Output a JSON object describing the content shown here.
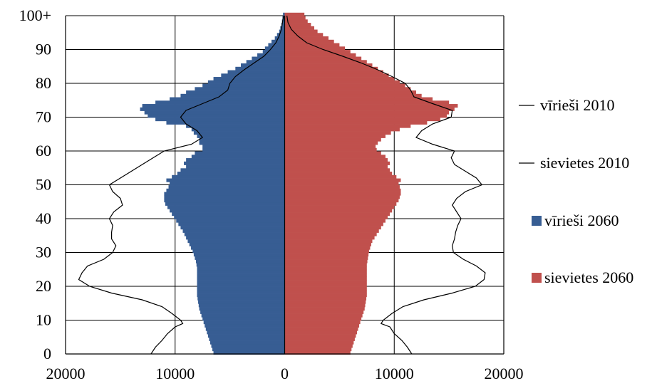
{
  "chart_data": {
    "type": "bar",
    "title": "",
    "xlabel": "",
    "ylabel": "",
    "xlim": [
      -20000,
      20000
    ],
    "ylim": [
      0,
      100
    ],
    "grid": true,
    "legend_position": "right",
    "x_ticks": [
      {
        "value": -20000,
        "label": "20000"
      },
      {
        "value": -10000,
        "label": "10000"
      },
      {
        "value": 0,
        "label": "0"
      },
      {
        "value": 10000,
        "label": "10000"
      },
      {
        "value": 20000,
        "label": "20000"
      }
    ],
    "y_ticks": [
      {
        "value": 0,
        "label": "0"
      },
      {
        "value": 10,
        "label": "10"
      },
      {
        "value": 20,
        "label": "20"
      },
      {
        "value": 30,
        "label": "30"
      },
      {
        "value": 40,
        "label": "40"
      },
      {
        "value": 50,
        "label": "50"
      },
      {
        "value": 60,
        "label": "60"
      },
      {
        "value": 70,
        "label": "70"
      },
      {
        "value": 80,
        "label": "80"
      },
      {
        "value": 90,
        "label": "90"
      },
      {
        "value": 100,
        "label": "100+"
      }
    ],
    "series": [
      {
        "name": "vīrieši 2010",
        "kind": "line",
        "side": "left",
        "color": "#000000",
        "points": [
          [
            0,
            12200
          ],
          [
            2,
            11800
          ],
          [
            4,
            11200
          ],
          [
            6,
            10700
          ],
          [
            8,
            10000
          ],
          [
            9,
            9300
          ],
          [
            10,
            9500
          ],
          [
            12,
            10300
          ],
          [
            14,
            11200
          ],
          [
            16,
            13000
          ],
          [
            18,
            15800
          ],
          [
            20,
            17800
          ],
          [
            22,
            18800
          ],
          [
            24,
            18500
          ],
          [
            26,
            18000
          ],
          [
            28,
            16500
          ],
          [
            30,
            15700
          ],
          [
            32,
            15400
          ],
          [
            34,
            15800
          ],
          [
            36,
            15800
          ],
          [
            38,
            15700
          ],
          [
            40,
            16000
          ],
          [
            42,
            15600
          ],
          [
            44,
            14800
          ],
          [
            46,
            15000
          ],
          [
            48,
            15700
          ],
          [
            50,
            16000
          ],
          [
            52,
            15000
          ],
          [
            54,
            14000
          ],
          [
            56,
            13000
          ],
          [
            58,
            12000
          ],
          [
            60,
            11000
          ],
          [
            62,
            8500
          ],
          [
            64,
            7500
          ],
          [
            66,
            8000
          ],
          [
            68,
            9000
          ],
          [
            70,
            9500
          ],
          [
            72,
            9000
          ],
          [
            74,
            7500
          ],
          [
            76,
            6000
          ],
          [
            78,
            5200
          ],
          [
            80,
            5000
          ],
          [
            82,
            4500
          ],
          [
            84,
            3700
          ],
          [
            86,
            2800
          ],
          [
            88,
            1900
          ],
          [
            90,
            1300
          ],
          [
            92,
            800
          ],
          [
            94,
            500
          ],
          [
            96,
            300
          ],
          [
            98,
            200
          ],
          [
            100,
            100
          ]
        ]
      },
      {
        "name": "sievietes 2010",
        "kind": "line",
        "side": "right",
        "color": "#000000",
        "points": [
          [
            0,
            11600
          ],
          [
            2,
            11200
          ],
          [
            4,
            10700
          ],
          [
            6,
            10000
          ],
          [
            8,
            9600
          ],
          [
            9,
            8800
          ],
          [
            10,
            9000
          ],
          [
            12,
            9800
          ],
          [
            14,
            10800
          ],
          [
            16,
            12700
          ],
          [
            18,
            15300
          ],
          [
            20,
            17400
          ],
          [
            22,
            18200
          ],
          [
            24,
            18300
          ],
          [
            26,
            17500
          ],
          [
            28,
            16300
          ],
          [
            30,
            15400
          ],
          [
            32,
            15300
          ],
          [
            34,
            15500
          ],
          [
            36,
            15600
          ],
          [
            38,
            15800
          ],
          [
            40,
            16100
          ],
          [
            42,
            15700
          ],
          [
            44,
            15300
          ],
          [
            46,
            15700
          ],
          [
            48,
            16500
          ],
          [
            50,
            18000
          ],
          [
            52,
            17500
          ],
          [
            54,
            16500
          ],
          [
            56,
            15500
          ],
          [
            58,
            15200
          ],
          [
            60,
            15500
          ],
          [
            62,
            13500
          ],
          [
            64,
            12000
          ],
          [
            66,
            12500
          ],
          [
            68,
            13500
          ],
          [
            70,
            15200
          ],
          [
            72,
            15300
          ],
          [
            74,
            13500
          ],
          [
            76,
            11800
          ],
          [
            78,
            11500
          ],
          [
            80,
            11000
          ],
          [
            82,
            9800
          ],
          [
            84,
            8500
          ],
          [
            86,
            7000
          ],
          [
            88,
            5300
          ],
          [
            90,
            3500
          ],
          [
            92,
            2000
          ],
          [
            94,
            1200
          ],
          [
            96,
            600
          ],
          [
            98,
            300
          ],
          [
            100,
            200
          ]
        ]
      },
      {
        "name": "vīrieši 2060",
        "kind": "bar",
        "side": "left",
        "color": "#375D93",
        "values": [
          6500,
          6600,
          6700,
          6800,
          6900,
          7000,
          7100,
          7200,
          7300,
          7400,
          7500,
          7600,
          7700,
          7800,
          7850,
          7900,
          7950,
          8000,
          8000,
          8000,
          8000,
          8000,
          8000,
          8000,
          8000,
          8000,
          8050,
          8100,
          8200,
          8300,
          8400,
          8550,
          8700,
          8850,
          9000,
          9150,
          9300,
          9500,
          9700,
          9900,
          10100,
          10300,
          10500,
          10700,
          10900,
          11000,
          11000,
          11000,
          10800,
          10600,
          10500,
          10800,
          10300,
          9800,
          9500,
          9000,
          9200,
          9000,
          8500,
          8200,
          7500,
          7500,
          7800,
          7800,
          8000,
          8300,
          8500,
          9000,
          10800,
          11800,
          12500,
          12800,
          13200,
          13000,
          11800,
          10500,
          9500,
          9000,
          8200,
          7500,
          7000,
          6500,
          5800,
          5200,
          4500,
          4000,
          3500,
          3000,
          2500,
          2000,
          1800,
          1500,
          1200,
          900,
          700,
          500,
          400,
          300,
          250,
          200,
          150
        ]
      },
      {
        "name": "sievietes 2060",
        "kind": "bar",
        "side": "right",
        "color": "#C0504D",
        "values": [
          6000,
          6100,
          6200,
          6300,
          6400,
          6500,
          6600,
          6700,
          6800,
          6900,
          7000,
          7100,
          7200,
          7300,
          7350,
          7400,
          7450,
          7500,
          7500,
          7500,
          7500,
          7500,
          7500,
          7500,
          7500,
          7500,
          7500,
          7550,
          7600,
          7650,
          7700,
          7800,
          7900,
          8000,
          8200,
          8400,
          8600,
          8800,
          9000,
          9200,
          9400,
          9600,
          9800,
          10000,
          10200,
          10400,
          10500,
          10600,
          10600,
          10500,
          10400,
          10600,
          10200,
          9800,
          9600,
          9400,
          9600,
          9400,
          9200,
          8800,
          8400,
          8300,
          8500,
          8800,
          9200,
          9700,
          10500,
          11500,
          13000,
          14200,
          14800,
          15000,
          15500,
          15800,
          15000,
          13500,
          12500,
          12000,
          11500,
          11000,
          10500,
          10000,
          9500,
          9000,
          8500,
          8000,
          7500,
          7000,
          6500,
          6000,
          5500,
          5000,
          4500,
          4000,
          3500,
          3000,
          2700,
          2400,
          2100,
          1900,
          1800
        ]
      }
    ]
  }
}
